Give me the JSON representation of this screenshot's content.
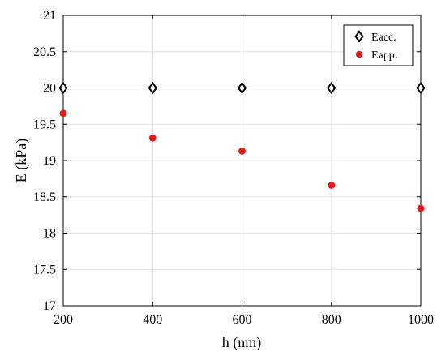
{
  "chart_data": {
    "type": "scatter",
    "title": "",
    "xlabel": "h (nm)",
    "ylabel": "E (kPa)",
    "xlim": [
      200,
      1000
    ],
    "ylim": [
      17,
      21
    ],
    "xticks": [
      200,
      400,
      600,
      800,
      1000
    ],
    "yticks": [
      17,
      17.5,
      18,
      18.5,
      19,
      19.5,
      20,
      20.5,
      21
    ],
    "grid": true,
    "legend_position": "top-right",
    "series": [
      {
        "name": "Eacc.",
        "marker": "diamond-open",
        "color": "#000000",
        "x": [
          200,
          400,
          600,
          800,
          1000
        ],
        "y": [
          20,
          20,
          20,
          20,
          20
        ]
      },
      {
        "name": "Eapp.",
        "marker": "circle-filled",
        "color": "#e41a1c",
        "x": [
          200,
          400,
          600,
          800,
          1000
        ],
        "y": [
          19.65,
          19.31,
          19.13,
          18.66,
          18.34
        ]
      }
    ]
  }
}
